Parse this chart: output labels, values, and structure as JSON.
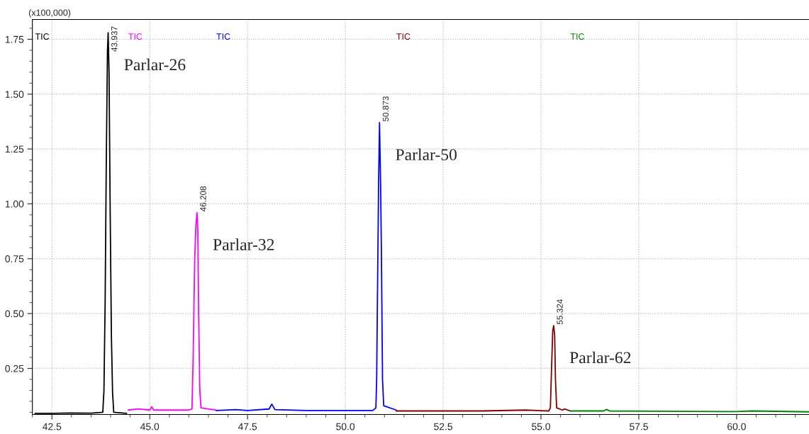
{
  "chart_data": {
    "type": "line",
    "xlim": [
      42.0,
      61.85
    ],
    "ylim": [
      0.04,
      1.84
    ],
    "xticks": [
      {
        "value": 42.5,
        "label": "42.5"
      },
      {
        "value": 45.0,
        "label": "45.0"
      },
      {
        "value": 47.5,
        "label": "47.5"
      },
      {
        "value": 50.0,
        "label": "50.0"
      },
      {
        "value": 52.5,
        "label": "52.5"
      },
      {
        "value": 55.0,
        "label": "55.0"
      },
      {
        "value": 57.5,
        "label": "57.5"
      },
      {
        "value": 60.0,
        "label": "60.0"
      }
    ],
    "yticks": [
      0.25,
      {
        "value": 0.5,
        "label": "0.50"
      },
      0.75,
      {
        "value": 1.0,
        "label": "1.00"
      },
      1.25,
      {
        "value": 1.5,
        "label": "1.50"
      },
      1.75
    ],
    "grid": true,
    "legend": false,
    "marker": "none",
    "line_style": "solid",
    "series": [
      {
        "name": "TIC",
        "color": "#000000",
        "x": [
          42.07,
          42.5,
          43.0,
          43.5,
          43.8,
          43.83,
          43.86,
          43.89,
          43.92,
          43.937,
          43.96,
          43.99,
          44.02,
          44.05,
          44.08,
          44.41
        ],
        "values": [
          0.045,
          0.045,
          0.047,
          0.046,
          0.05,
          0.15,
          0.55,
          1.2,
          1.7,
          1.78,
          1.6,
          0.95,
          0.4,
          0.14,
          0.05,
          0.045
        ]
      },
      {
        "name": "TIC",
        "color": "#ff00ff",
        "x": [
          44.45,
          44.7,
          45.0,
          45.05,
          45.1,
          46.0,
          46.08,
          46.11,
          46.15,
          46.18,
          46.208,
          46.23,
          46.25,
          46.28,
          46.31,
          46.7
        ],
        "values": [
          0.06,
          0.065,
          0.06,
          0.075,
          0.06,
          0.06,
          0.065,
          0.3,
          0.75,
          0.9,
          0.96,
          0.88,
          0.5,
          0.15,
          0.07,
          0.06
        ]
      },
      {
        "name": "TIC",
        "color": "#0000ff",
        "x": [
          46.7,
          47.2,
          47.5,
          48.05,
          48.12,
          48.2,
          49.0,
          50.7,
          50.78,
          50.8,
          50.83,
          50.85,
          50.873,
          50.9,
          50.92,
          50.95,
          50.98,
          51.3
        ],
        "values": [
          0.058,
          0.062,
          0.058,
          0.065,
          0.087,
          0.062,
          0.058,
          0.058,
          0.07,
          0.2,
          0.75,
          1.1,
          1.37,
          1.1,
          0.8,
          0.2,
          0.08,
          0.06
        ]
      },
      {
        "name": "TIC",
        "color": "#800000",
        "x": [
          51.3,
          52.5,
          53.5,
          54.6,
          55.2,
          55.24,
          55.27,
          55.3,
          55.324,
          55.35,
          55.37,
          55.4,
          55.55,
          55.6,
          55.75
        ],
        "values": [
          0.056,
          0.056,
          0.056,
          0.06,
          0.056,
          0.07,
          0.25,
          0.42,
          0.445,
          0.4,
          0.2,
          0.07,
          0.06,
          0.065,
          0.056
        ]
      },
      {
        "name": "TIC",
        "color": "#008000",
        "x": [
          55.75,
          56.6,
          56.68,
          56.75,
          58.0,
          60.0,
          60.4,
          61.85
        ],
        "values": [
          0.056,
          0.056,
          0.063,
          0.056,
          0.055,
          0.053,
          0.056,
          0.052
        ]
      }
    ],
    "annotations": [
      "(x100,000)",
      {
        "text": "43.937",
        "x": 43.937,
        "y": 1.78
      },
      {
        "text": "Parlar-26",
        "x": 43.937,
        "y": 1.78
      },
      {
        "text": "46.208",
        "x": 46.208,
        "y": 0.96
      },
      {
        "text": "Parlar-32",
        "x": 46.208,
        "y": 0.96
      },
      {
        "text": "50.873",
        "x": 50.873,
        "y": 1.37
      },
      {
        "text": "Parlar-50",
        "x": 50.873,
        "y": 1.37
      },
      {
        "text": "55.324",
        "x": 55.324,
        "y": 0.445
      },
      {
        "text": "Parlar-62",
        "x": 55.324,
        "y": 0.445
      }
    ]
  }
}
